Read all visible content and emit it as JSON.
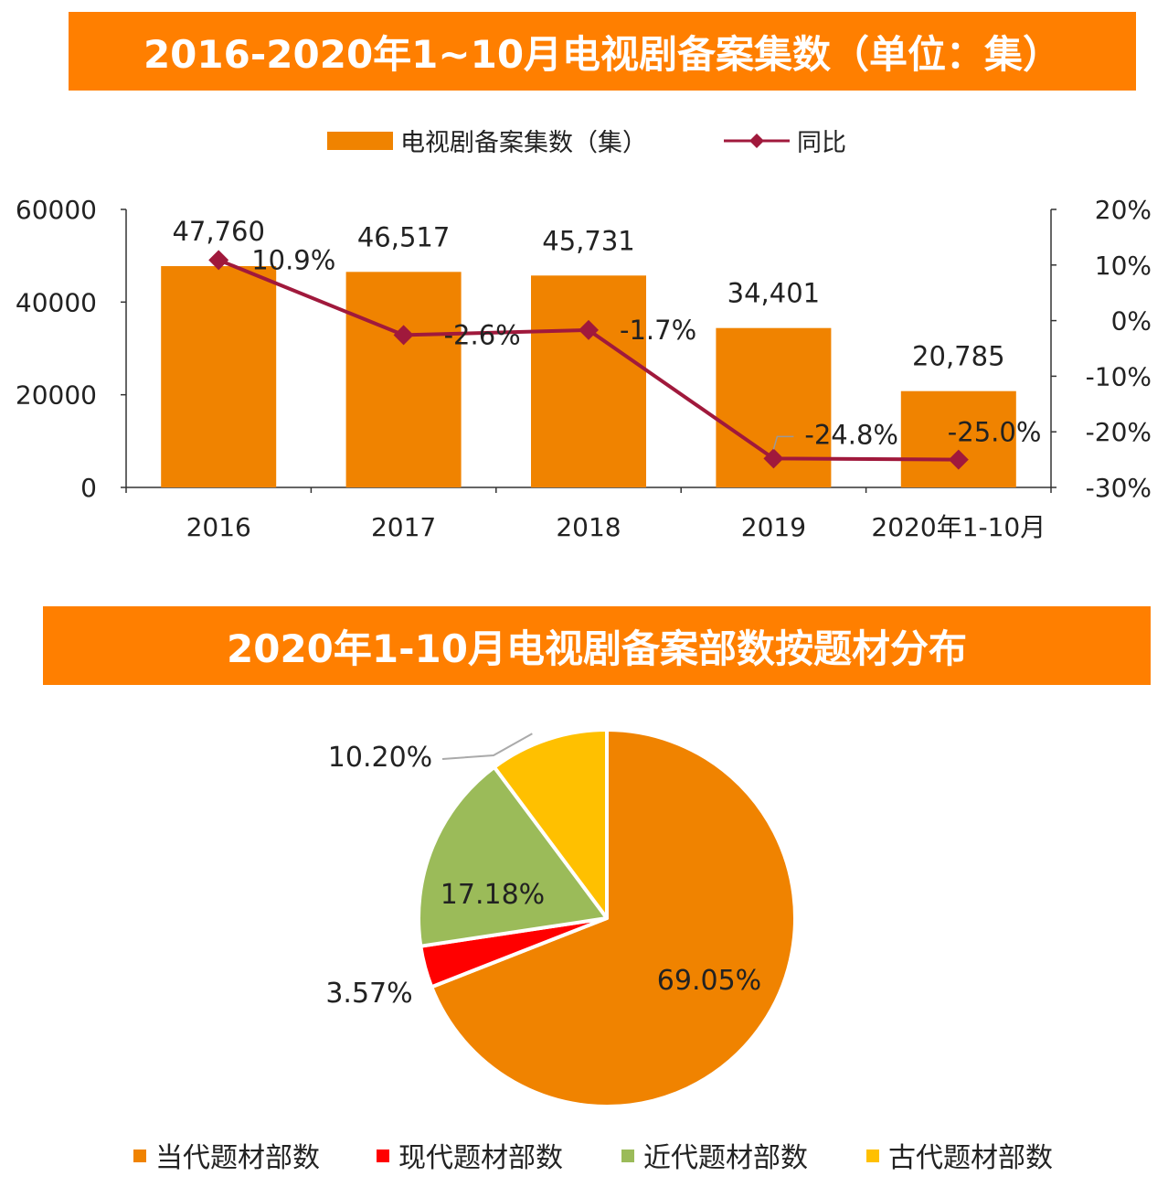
{
  "chart_data": [
    {
      "type": "bar",
      "title": "2016-2020年1~10月电视剧备案集数（单位：集）",
      "categories": [
        "2016",
        "2017",
        "2018",
        "2019",
        "2020年1-10月"
      ],
      "series": [
        {
          "name": "电视剧备案集数（集）",
          "type": "bar",
          "axis": "left",
          "values": [
            47760,
            46517,
            45731,
            34401,
            20785
          ],
          "labels": [
            "47,760",
            "46,517",
            "45,731",
            "34,401",
            "20,785"
          ]
        },
        {
          "name": "同比",
          "type": "line",
          "axis": "right",
          "values": [
            10.9,
            -2.6,
            -1.7,
            -24.8,
            -25.0
          ],
          "labels": [
            "10.9%",
            "-2.6%",
            "-1.7%",
            "-24.8%",
            "-25.0%"
          ]
        }
      ],
      "left_axis": {
        "ylim": [
          0,
          60000
        ],
        "ticks": [
          "0",
          "20000",
          "40000",
          "60000"
        ]
      },
      "right_axis": {
        "ylim": [
          -30,
          20
        ],
        "ticks": [
          "-30%",
          "-20%",
          "-10%",
          "0%",
          "10%",
          "20%"
        ]
      },
      "legend_position": "top",
      "colors": {
        "bar": "#f08300",
        "line": "#a0193c"
      }
    },
    {
      "type": "pie",
      "title": "2020年1-10月电视剧备案部数按题材分布",
      "slices": [
        {
          "name": "当代题材部数",
          "value": 69.05,
          "label": "69.05%",
          "color": "#f08300"
        },
        {
          "name": "现代题材部数",
          "value": 3.57,
          "label": "3.57%",
          "color": "#ff0000"
        },
        {
          "name": "近代题材部数",
          "value": 17.18,
          "label": "17.18%",
          "color": "#9bbb59"
        },
        {
          "name": "古代题材部数",
          "value": 10.2,
          "label": "10.20%",
          "color": "#ffc000"
        }
      ],
      "legend_position": "bottom"
    }
  ]
}
